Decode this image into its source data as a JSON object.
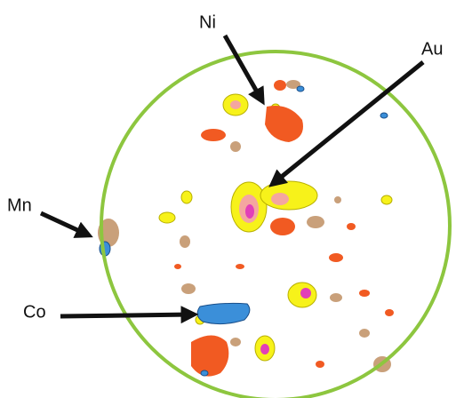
{
  "arrows": [
    {
      "label": "Ni"
    },
    {
      "label": "Au"
    },
    {
      "label": "Mn"
    },
    {
      "label": "Co"
    }
  ]
}
